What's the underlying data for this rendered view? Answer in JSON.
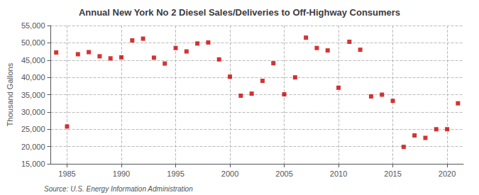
{
  "chart_data": {
    "type": "scatter",
    "title": "Annual New York No 2 Diesel Sales/Deliveries to Off-Highway Consumers",
    "ylabel": "Thousand Gallons",
    "source": "Source: U.S. Energy Information Administration",
    "x": [
      1984,
      1985,
      1986,
      1987,
      1988,
      1989,
      1990,
      1991,
      1992,
      1993,
      1994,
      1995,
      1996,
      1997,
      1998,
      1999,
      2000,
      2001,
      2002,
      2003,
      2004,
      2005,
      2006,
      2007,
      2008,
      2009,
      2010,
      2011,
      2012,
      2013,
      2014,
      2015,
      2016,
      2017,
      2018,
      2019,
      2020,
      2021
    ],
    "values": [
      47200,
      25800,
      46700,
      47300,
      46100,
      45500,
      45800,
      50700,
      51200,
      45700,
      44000,
      48500,
      47500,
      49800,
      50100,
      45200,
      40200,
      34700,
      35300,
      39000,
      44100,
      35100,
      40000,
      51500,
      48500,
      47800,
      37000,
      50300,
      48000,
      34500,
      35000,
      33200,
      19900,
      23200,
      22500,
      25000,
      25000,
      32500
    ],
    "color": "#cc0000",
    "marker": "square",
    "xlim": [
      1983.5,
      2021.5
    ],
    "xticks": [
      1985,
      1990,
      1995,
      2000,
      2005,
      2010,
      2015,
      2020
    ],
    "ylim": [
      15000,
      55000
    ],
    "yticks": [
      {
        "value": 15000,
        "label": "15,000"
      },
      {
        "value": 20000,
        "label": "20,000"
      },
      {
        "value": 25000,
        "label": "25,000"
      },
      {
        "value": 30000,
        "label": "30,000"
      },
      {
        "value": 35000,
        "label": "35,000"
      },
      {
        "value": 40000,
        "label": "40,000"
      },
      {
        "value": 45000,
        "label": "45,000"
      },
      {
        "value": 50000,
        "label": "50,000"
      },
      {
        "value": 55000,
        "label": "55,000"
      }
    ],
    "grid": true
  }
}
